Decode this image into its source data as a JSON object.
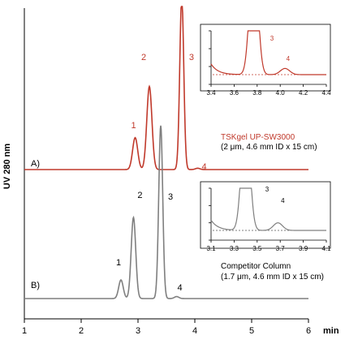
{
  "chart_data": {
    "type": "line",
    "title": "",
    "ylabel": "UV 280 nm",
    "xlabel": "min",
    "x_ticks": [
      "1",
      "2",
      "3",
      "4",
      "5",
      "6"
    ],
    "xlim": [
      1,
      6
    ],
    "series": [
      {
        "name": "A)",
        "label": "A)",
        "color": "#c0392b",
        "column_name": "TSKgel UP-SW3000",
        "column_spec": "(2 μm, 4.6 mm ID x 15 cm)",
        "baseline": 0.0,
        "scale": 1.0,
        "peaks": [
          {
            "label": "1",
            "x": 2.95,
            "height": 0.48,
            "width": 0.045
          },
          {
            "label": "2",
            "x": 3.2,
            "height": 1.25,
            "width": 0.045
          },
          {
            "label": "3",
            "x": 3.77,
            "height": 2.6,
            "width": 0.035
          },
          {
            "label": "4",
            "x": 4.05,
            "height": 0.02,
            "width": 0.04
          }
        ],
        "inset": {
          "x_ticks": [
            "3.4",
            "3.6",
            "3.8",
            "4.0",
            "4.2",
            "4.4"
          ],
          "xlim": [
            3.4,
            4.4
          ],
          "peak_labels": [
            {
              "label": "3",
              "x": 3.9,
              "height": 0.45
            },
            {
              "label": "4",
              "x": 4.04,
              "height": 0.18
            }
          ]
        }
      },
      {
        "name": "B)",
        "label": "B)",
        "color": "#7f7f7f",
        "column_name": "Competitor Column",
        "column_spec": "(1.7 μm, 4.6 mm ID x 15 cm)",
        "baseline": 0.0,
        "scale": 1.0,
        "peaks": [
          {
            "label": "1",
            "x": 2.7,
            "height": 0.28,
            "width": 0.04
          },
          {
            "label": "2",
            "x": 2.92,
            "height": 1.22,
            "width": 0.04
          },
          {
            "label": "3",
            "x": 3.4,
            "height": 2.6,
            "width": 0.035
          },
          {
            "label": "4",
            "x": 3.68,
            "height": 0.03,
            "width": 0.04
          }
        ],
        "inset": {
          "x_ticks": [
            "3.1",
            "3.3",
            "3.5",
            "3.7",
            "3.9",
            "4.1"
          ],
          "xlim": [
            3.1,
            4.1
          ],
          "peak_labels": [
            {
              "label": "3",
              "x": 3.6,
              "height": 0.5
            },
            {
              "label": "4",
              "x": 3.68,
              "height": 0.22
            }
          ]
        }
      }
    ]
  }
}
